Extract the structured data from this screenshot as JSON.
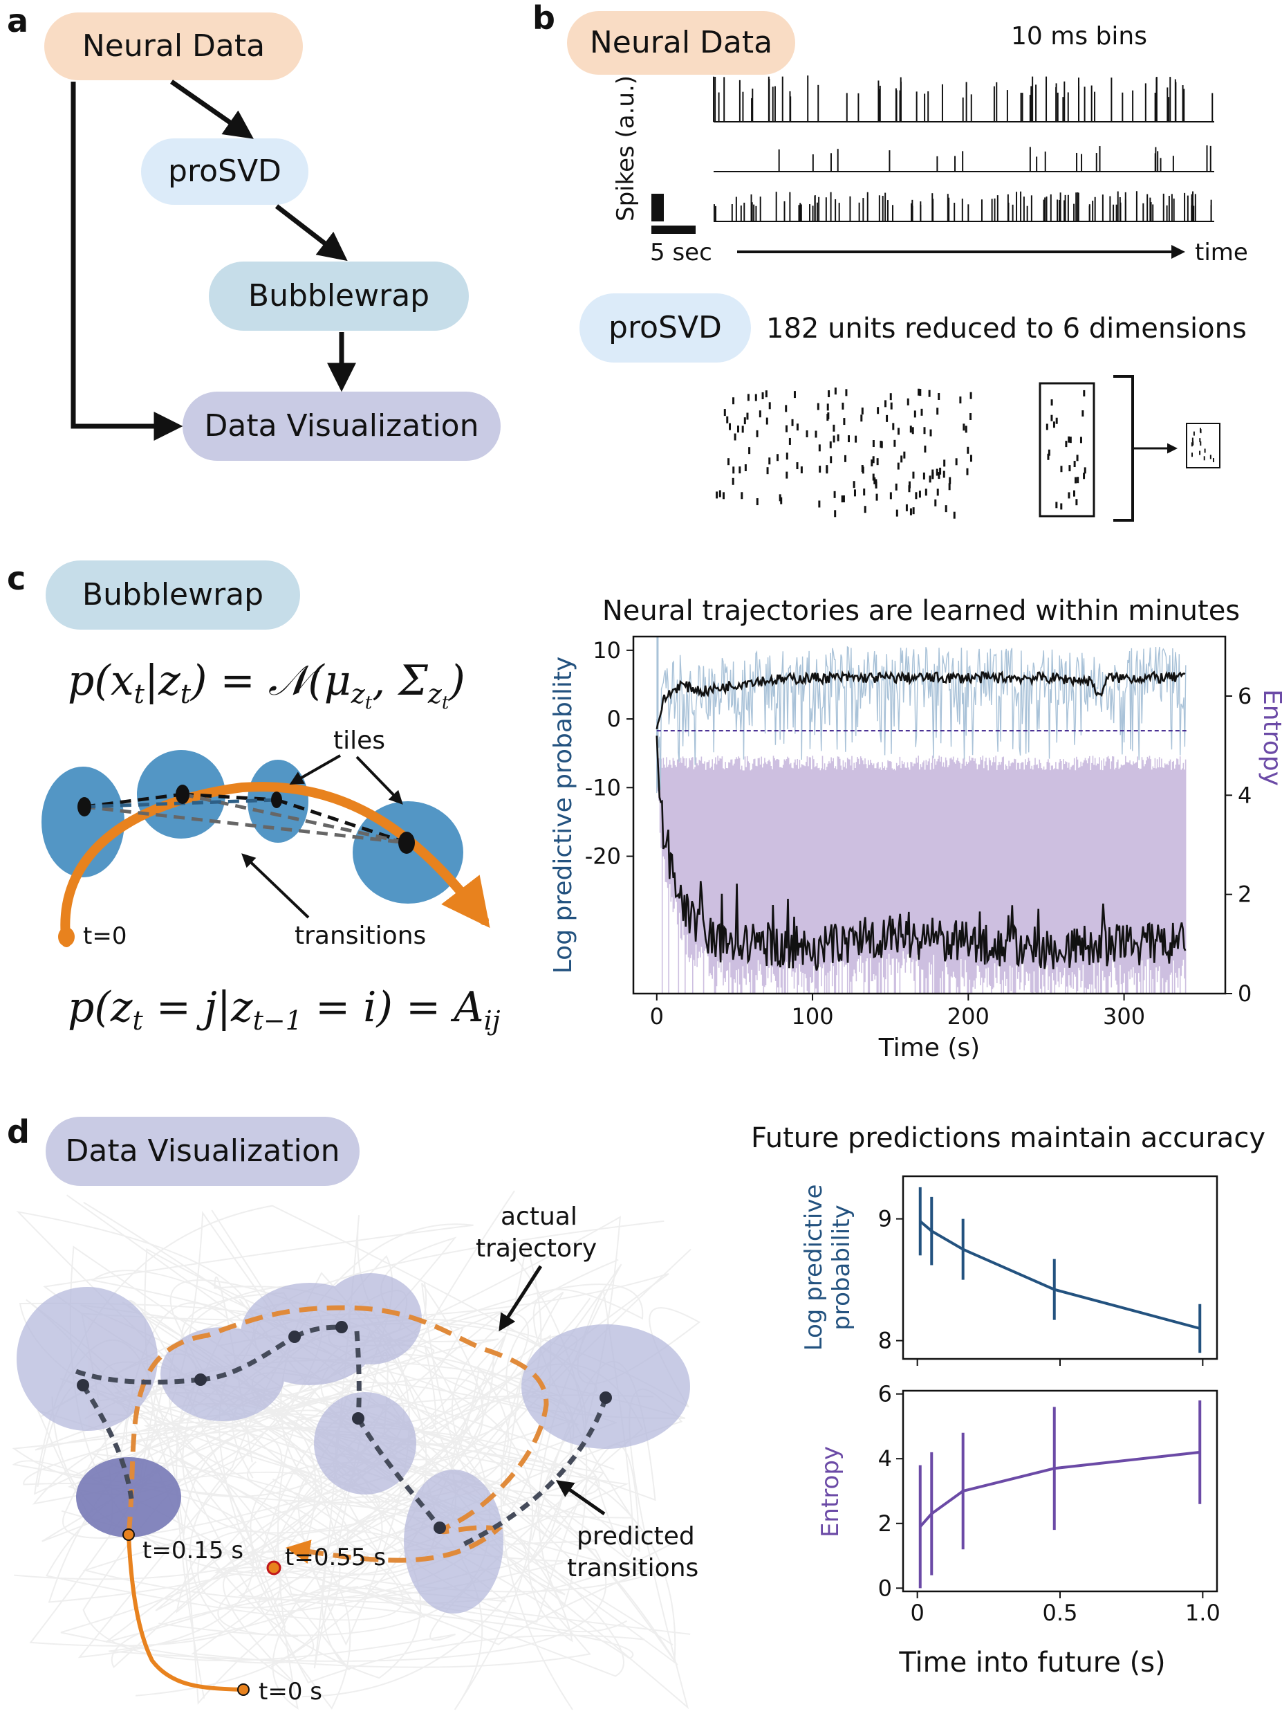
{
  "panel_labels": {
    "a": "a",
    "b": "b",
    "c": "c",
    "d": "d"
  },
  "panel_a": {
    "nodes": {
      "neural_data": "Neural Data",
      "prosvd": "proSVD",
      "bubblewrap": "Bubblewrap",
      "data_visualization": "Data Visualization"
    }
  },
  "panel_b": {
    "neural_pill": "Neural Data",
    "bins_note": "10 ms bins",
    "ylabel": "Spikes (a.u.)",
    "scale": "5 sec",
    "time_label": "time",
    "prosvd_pill": "proSVD",
    "reduction_note": "182 units reduced to 6 dimensions"
  },
  "panel_c": {
    "pill": "Bubblewrap",
    "eq_emission": "p(x_t | z_t) = N(μ_{z_t}, Σ_{z_t})",
    "eq_emission_parts": {
      "lhs": "p(x",
      "lhs_sub": "t",
      "mid": "|z",
      "mid_sub": "t",
      "rhs": ") = 𝒩(μ",
      "mu_sub": "z",
      "mu_subsub": "t",
      "sigma": ", Σ",
      "sigma_sub": "z",
      "sigma_subsub": "t",
      "close": ")"
    },
    "eq_transition_parts": {
      "a": "p(z",
      "a_sub": "t",
      "b": " = j|z",
      "b_sub": "t−1",
      "c": " = i) = A",
      "c_sub": "ij"
    },
    "tiles_label": "tiles",
    "transitions_label": "transitions",
    "t0_label": "t=0",
    "chart_title": "Neural trajectories are learned within minutes"
  },
  "panel_d": {
    "pill": "Data Visualization",
    "actual_label_1": "actual",
    "actual_label_2": "trajectory",
    "predicted_label_1": "predicted",
    "predicted_label_2": "transitions",
    "t015": "t=0.15 s",
    "t055": "t=0.55 s",
    "t0s": "t=0 s",
    "chart_title": "Future predictions maintain accuracy",
    "xlabel": "Time into future (s)"
  },
  "colors": {
    "neural_pill": "#f9dcc4",
    "prosvd_pill": "#dcebf9",
    "bubblewrap_pill": "#c6dde9",
    "dataviz_pill": "#c9cbe4",
    "tile_blue": "#4a90c2",
    "orange": "#e8821e",
    "logprob_blue": "#23527f",
    "entropy_purple": "#6b4aa6",
    "light_blue_trace": "#a9c2d8",
    "light_purple_trace": "#cdbfe0",
    "d_tile": "#b6b9dc"
  },
  "chart_data": [
    {
      "type": "line",
      "title": "Neural trajectories are learned within minutes",
      "xlabel": "Time (s)",
      "ylabel_left": "Log predictive probability",
      "ylabel_right": "Entropy",
      "xlim": [
        -15,
        365
      ],
      "xticks": [
        0,
        100,
        200,
        300
      ],
      "ylim_left": [
        -40,
        12
      ],
      "yticks_left": [
        10,
        0,
        -10,
        -20
      ],
      "ylim_right": [
        0,
        7.2
      ],
      "yticks_right": [
        0,
        2,
        4,
        6
      ],
      "entropy_reference": 5.3,
      "series": [
        {
          "name": "Log predictive probability (smoothed)",
          "axis": "left",
          "x": [
            0,
            5,
            15,
            30,
            60,
            100,
            150,
            200,
            250,
            280,
            283,
            290,
            320,
            340
          ],
          "values": [
            -1,
            3,
            5,
            4,
            5.5,
            6,
            6,
            6,
            6,
            5.5,
            3,
            6,
            6,
            6
          ]
        },
        {
          "name": "Entropy (smoothed)",
          "axis": "right",
          "x": [
            0,
            3,
            10,
            20,
            40,
            70,
            100,
            150,
            200,
            250,
            300,
            340
          ],
          "values": [
            4.9,
            3.5,
            2.5,
            1.5,
            1.0,
            1.0,
            0.9,
            1.2,
            1.0,
            0.9,
            1.0,
            1.0
          ]
        }
      ]
    },
    {
      "type": "line",
      "title": "Future predictions maintain accuracy",
      "xlabel": "Time into future (s)",
      "subplots": [
        {
          "ylabel": "Log predictive probability",
          "ylim": [
            7.85,
            9.35
          ],
          "yticks": [
            8,
            9
          ],
          "x": [
            0.01,
            0.05,
            0.16,
            0.48,
            0.99
          ],
          "values": [
            8.98,
            8.9,
            8.75,
            8.42,
            8.1
          ],
          "err": [
            0.28,
            0.28,
            0.25,
            0.25,
            0.2
          ]
        },
        {
          "ylabel": "Entropy",
          "ylim": [
            -0.1,
            6.1
          ],
          "yticks": [
            0,
            2,
            4,
            6
          ],
          "x": [
            0.01,
            0.05,
            0.16,
            0.48,
            0.99
          ],
          "values": [
            1.9,
            2.3,
            3.0,
            3.7,
            4.2
          ],
          "err": [
            1.9,
            1.9,
            1.8,
            1.9,
            1.6
          ]
        }
      ],
      "xlim": [
        -0.05,
        1.05
      ],
      "xticks": [
        0,
        0.5,
        1.0
      ],
      "xticklabels": [
        "0",
        "0.5",
        "1.0"
      ]
    }
  ]
}
